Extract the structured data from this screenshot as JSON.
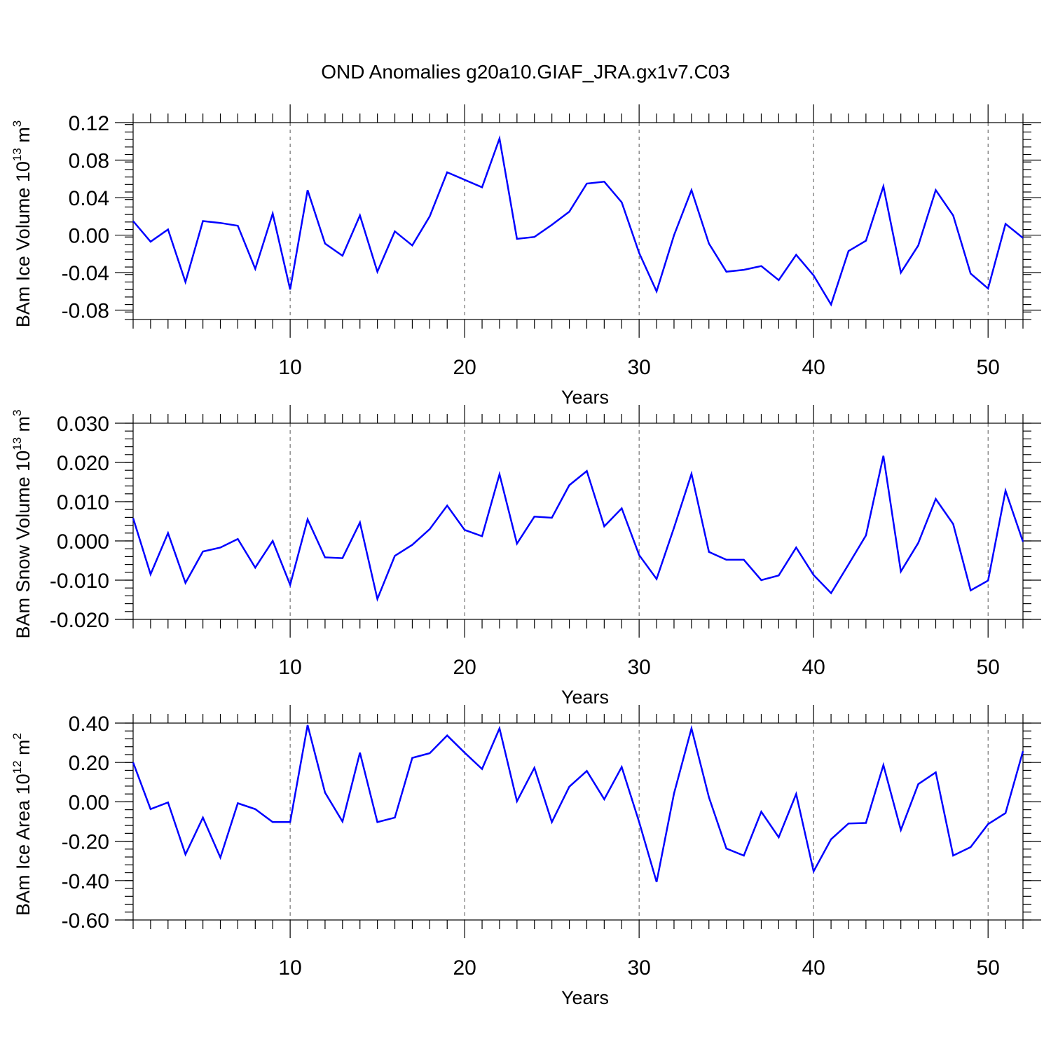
{
  "title": "OND Anomalies g20a10.GIAF_JRA.gx1v7.C03",
  "chart_data": [
    {
      "type": "line",
      "ylabel": {
        "text": "BAm Ice Volume 10",
        "exp": "13",
        "unit": " m",
        "unit_exp": "3"
      },
      "xlabel": "Years",
      "xlim": [
        1,
        52
      ],
      "ylim": [
        -0.09,
        0.12
      ],
      "x_ticks": [
        10,
        20,
        30,
        40,
        50
      ],
      "x_tick_labels": [
        "10",
        "20",
        "30",
        "40",
        "50"
      ],
      "y_ticks": [
        0.12,
        0.08,
        0.04,
        0.0,
        -0.04,
        -0.08
      ],
      "y_tick_labels": [
        "0.12",
        "0.08",
        "0.04",
        "0.00",
        "-0.04",
        "-0.08"
      ],
      "y_minor_step": 0.008,
      "grid": "vertical-dashed",
      "series": [
        {
          "color": "#0000ff",
          "x": [
            1,
            2,
            3,
            4,
            5,
            6,
            7,
            8,
            9,
            10,
            11,
            12,
            13,
            14,
            15,
            16,
            17,
            18,
            19,
            20,
            21,
            22,
            23,
            24,
            25,
            26,
            27,
            28,
            29,
            30,
            31,
            32,
            33,
            34,
            35,
            36,
            37,
            38,
            39,
            40,
            41,
            42,
            43,
            44,
            45,
            46,
            47,
            48,
            49,
            50,
            51,
            52
          ],
          "values": [
            0.015,
            -0.007,
            0.006,
            -0.05,
            0.015,
            0.013,
            0.01,
            -0.036,
            0.023,
            -0.058,
            0.048,
            -0.009,
            -0.022,
            0.021,
            -0.039,
            0.004,
            -0.011,
            0.02,
            0.067,
            0.059,
            0.051,
            0.103,
            -0.004,
            -0.002,
            0.011,
            0.025,
            0.055,
            0.057,
            0.035,
            -0.019,
            -0.06,
            0.0,
            0.048,
            -0.009,
            -0.039,
            -0.037,
            -0.033,
            -0.048,
            -0.021,
            -0.043,
            -0.074,
            -0.017,
            -0.006,
            0.052,
            -0.04,
            -0.011,
            0.048,
            0.021,
            -0.041,
            -0.057,
            0.012,
            -0.003
          ]
        }
      ]
    },
    {
      "type": "line",
      "ylabel": {
        "text": "BAm Snow Volume 10",
        "exp": "13",
        "unit": " m",
        "unit_exp": "3"
      },
      "xlabel": "Years",
      "xlim": [
        1,
        52
      ],
      "ylim": [
        -0.02,
        0.03
      ],
      "x_ticks": [
        10,
        20,
        30,
        40,
        50
      ],
      "x_tick_labels": [
        "10",
        "20",
        "30",
        "40",
        "50"
      ],
      "y_ticks": [
        0.03,
        0.02,
        0.01,
        0.0,
        -0.01,
        -0.02
      ],
      "y_tick_labels": [
        "0.030",
        "0.020",
        "0.010",
        "0.000",
        "-0.010",
        "-0.020"
      ],
      "y_minor_step": 0.002,
      "grid": "vertical-dashed",
      "series": [
        {
          "color": "#0000ff",
          "x": [
            1,
            2,
            3,
            4,
            5,
            6,
            7,
            8,
            9,
            10,
            11,
            12,
            13,
            14,
            15,
            16,
            17,
            18,
            19,
            20,
            21,
            22,
            23,
            24,
            25,
            26,
            27,
            28,
            29,
            30,
            31,
            32,
            33,
            34,
            35,
            36,
            37,
            38,
            39,
            40,
            41,
            42,
            43,
            44,
            45,
            46,
            47,
            48,
            49,
            50,
            51,
            52
          ],
          "values": [
            0.0058,
            -0.0085,
            0.002,
            -0.0107,
            -0.0027,
            -0.0017,
            0.0005,
            -0.0068,
            0.0,
            -0.0112,
            0.0055,
            -0.0042,
            -0.0044,
            0.0047,
            -0.0148,
            -0.0038,
            -0.001,
            0.003,
            0.009,
            0.0028,
            0.0012,
            0.017,
            -0.0007,
            0.0062,
            0.0059,
            0.0142,
            0.0178,
            0.0037,
            0.0083,
            -0.0036,
            -0.0097,
            0.0034,
            0.0171,
            -0.0028,
            -0.0048,
            -0.0048,
            -0.01,
            -0.0088,
            -0.0017,
            -0.0087,
            -0.0133,
            -0.006,
            0.0014,
            0.0217,
            -0.0078,
            -0.0005,
            0.0107,
            0.0043,
            -0.0126,
            -0.0101,
            0.0128,
            -0.0002
          ]
        }
      ]
    },
    {
      "type": "line",
      "ylabel": {
        "text": "BAm Ice Area 10",
        "exp": "12",
        "unit": " m",
        "unit_exp": "2"
      },
      "xlabel": "Years",
      "xlim": [
        1,
        52
      ],
      "ylim": [
        -0.6,
        0.4
      ],
      "x_ticks": [
        10,
        20,
        30,
        40,
        50
      ],
      "x_tick_labels": [
        "10",
        "20",
        "30",
        "40",
        "50"
      ],
      "y_ticks": [
        0.4,
        0.2,
        0.0,
        -0.2,
        -0.4,
        -0.6
      ],
      "y_tick_labels": [
        "0.40",
        "0.20",
        "0.00",
        "-0.20",
        "-0.40",
        "-0.60"
      ],
      "y_minor_step": 0.04,
      "grid": "vertical-dashed",
      "series": [
        {
          "color": "#0000ff",
          "x": [
            1,
            2,
            3,
            4,
            5,
            6,
            7,
            8,
            9,
            10,
            11,
            12,
            13,
            14,
            15,
            16,
            17,
            18,
            19,
            20,
            21,
            22,
            23,
            24,
            25,
            26,
            27,
            28,
            29,
            30,
            31,
            32,
            33,
            34,
            35,
            36,
            37,
            38,
            39,
            40,
            41,
            42,
            43,
            44,
            45,
            46,
            47,
            48,
            49,
            50,
            51,
            52
          ],
          "values": [
            0.2,
            -0.037,
            -0.003,
            -0.267,
            -0.08,
            -0.283,
            -0.007,
            -0.037,
            -0.103,
            -0.103,
            0.39,
            0.047,
            -0.1,
            0.25,
            -0.103,
            -0.08,
            0.223,
            0.247,
            0.337,
            0.25,
            0.167,
            0.373,
            0.003,
            0.173,
            -0.103,
            0.077,
            0.157,
            0.013,
            0.177,
            -0.103,
            -0.407,
            0.043,
            0.373,
            0.023,
            -0.237,
            -0.273,
            -0.05,
            -0.18,
            0.04,
            -0.353,
            -0.19,
            -0.11,
            -0.107,
            0.187,
            -0.143,
            0.09,
            0.15,
            -0.273,
            -0.23,
            -0.113,
            -0.057,
            0.257
          ]
        }
      ]
    }
  ]
}
